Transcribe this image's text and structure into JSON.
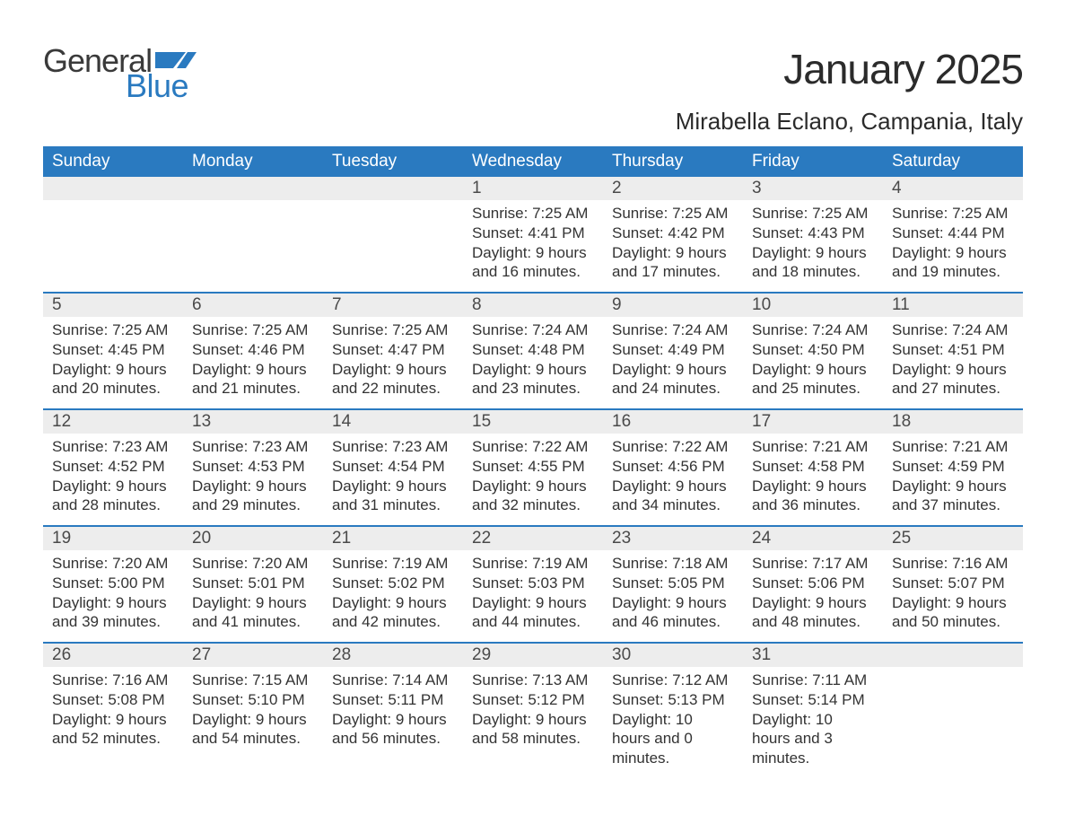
{
  "brand": {
    "part1": "General",
    "part2": "Blue",
    "flag_color": "#2a7ac0"
  },
  "title": "January 2025",
  "location": "Mirabella Eclano, Campania, Italy",
  "weekdays": [
    "Sunday",
    "Monday",
    "Tuesday",
    "Wednesday",
    "Thursday",
    "Friday",
    "Saturday"
  ],
  "colors": {
    "header_bg": "#2a7ac0",
    "header_text": "#ffffff",
    "daynum_bg": "#ededed",
    "daynum_text": "#4a4a4a",
    "body_text": "#333333",
    "divider": "#2a7ac0",
    "background": "#ffffff"
  },
  "typography": {
    "title_fontsize": 46,
    "location_fontsize": 26,
    "weekday_fontsize": 19,
    "daynum_fontsize": 19,
    "body_fontsize": 17
  },
  "layout": {
    "columns": 7,
    "rows": 5,
    "leading_blanks": 3,
    "trailing_blanks": 1
  },
  "labels": {
    "sunrise": "Sunrise:",
    "sunset": "Sunset:",
    "daylight": "Daylight:"
  },
  "days": [
    {
      "n": "1",
      "sunrise": "7:25 AM",
      "sunset": "4:41 PM",
      "daylight": "9 hours and 16 minutes."
    },
    {
      "n": "2",
      "sunrise": "7:25 AM",
      "sunset": "4:42 PM",
      "daylight": "9 hours and 17 minutes."
    },
    {
      "n": "3",
      "sunrise": "7:25 AM",
      "sunset": "4:43 PM",
      "daylight": "9 hours and 18 minutes."
    },
    {
      "n": "4",
      "sunrise": "7:25 AM",
      "sunset": "4:44 PM",
      "daylight": "9 hours and 19 minutes."
    },
    {
      "n": "5",
      "sunrise": "7:25 AM",
      "sunset": "4:45 PM",
      "daylight": "9 hours and 20 minutes."
    },
    {
      "n": "6",
      "sunrise": "7:25 AM",
      "sunset": "4:46 PM",
      "daylight": "9 hours and 21 minutes."
    },
    {
      "n": "7",
      "sunrise": "7:25 AM",
      "sunset": "4:47 PM",
      "daylight": "9 hours and 22 minutes."
    },
    {
      "n": "8",
      "sunrise": "7:24 AM",
      "sunset": "4:48 PM",
      "daylight": "9 hours and 23 minutes."
    },
    {
      "n": "9",
      "sunrise": "7:24 AM",
      "sunset": "4:49 PM",
      "daylight": "9 hours and 24 minutes."
    },
    {
      "n": "10",
      "sunrise": "7:24 AM",
      "sunset": "4:50 PM",
      "daylight": "9 hours and 25 minutes."
    },
    {
      "n": "11",
      "sunrise": "7:24 AM",
      "sunset": "4:51 PM",
      "daylight": "9 hours and 27 minutes."
    },
    {
      "n": "12",
      "sunrise": "7:23 AM",
      "sunset": "4:52 PM",
      "daylight": "9 hours and 28 minutes."
    },
    {
      "n": "13",
      "sunrise": "7:23 AM",
      "sunset": "4:53 PM",
      "daylight": "9 hours and 29 minutes."
    },
    {
      "n": "14",
      "sunrise": "7:23 AM",
      "sunset": "4:54 PM",
      "daylight": "9 hours and 31 minutes."
    },
    {
      "n": "15",
      "sunrise": "7:22 AM",
      "sunset": "4:55 PM",
      "daylight": "9 hours and 32 minutes."
    },
    {
      "n": "16",
      "sunrise": "7:22 AM",
      "sunset": "4:56 PM",
      "daylight": "9 hours and 34 minutes."
    },
    {
      "n": "17",
      "sunrise": "7:21 AM",
      "sunset": "4:58 PM",
      "daylight": "9 hours and 36 minutes."
    },
    {
      "n": "18",
      "sunrise": "7:21 AM",
      "sunset": "4:59 PM",
      "daylight": "9 hours and 37 minutes."
    },
    {
      "n": "19",
      "sunrise": "7:20 AM",
      "sunset": "5:00 PM",
      "daylight": "9 hours and 39 minutes."
    },
    {
      "n": "20",
      "sunrise": "7:20 AM",
      "sunset": "5:01 PM",
      "daylight": "9 hours and 41 minutes."
    },
    {
      "n": "21",
      "sunrise": "7:19 AM",
      "sunset": "5:02 PM",
      "daylight": "9 hours and 42 minutes."
    },
    {
      "n": "22",
      "sunrise": "7:19 AM",
      "sunset": "5:03 PM",
      "daylight": "9 hours and 44 minutes."
    },
    {
      "n": "23",
      "sunrise": "7:18 AM",
      "sunset": "5:05 PM",
      "daylight": "9 hours and 46 minutes."
    },
    {
      "n": "24",
      "sunrise": "7:17 AM",
      "sunset": "5:06 PM",
      "daylight": "9 hours and 48 minutes."
    },
    {
      "n": "25",
      "sunrise": "7:16 AM",
      "sunset": "5:07 PM",
      "daylight": "9 hours and 50 minutes."
    },
    {
      "n": "26",
      "sunrise": "7:16 AM",
      "sunset": "5:08 PM",
      "daylight": "9 hours and 52 minutes."
    },
    {
      "n": "27",
      "sunrise": "7:15 AM",
      "sunset": "5:10 PM",
      "daylight": "9 hours and 54 minutes."
    },
    {
      "n": "28",
      "sunrise": "7:14 AM",
      "sunset": "5:11 PM",
      "daylight": "9 hours and 56 minutes."
    },
    {
      "n": "29",
      "sunrise": "7:13 AM",
      "sunset": "5:12 PM",
      "daylight": "9 hours and 58 minutes."
    },
    {
      "n": "30",
      "sunrise": "7:12 AM",
      "sunset": "5:13 PM",
      "daylight": "10 hours and 0 minutes."
    },
    {
      "n": "31",
      "sunrise": "7:11 AM",
      "sunset": "5:14 PM",
      "daylight": "10 hours and 3 minutes."
    }
  ]
}
